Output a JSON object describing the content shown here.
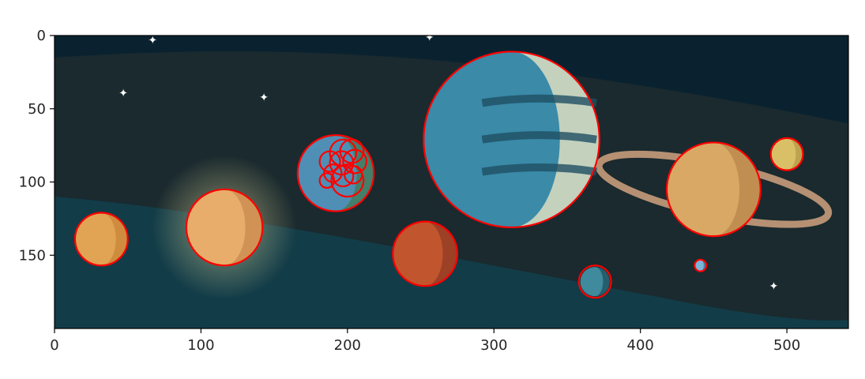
{
  "chart_data": {
    "type": "scatter",
    "title": "",
    "xlabel": "",
    "ylabel": "",
    "xlim": [
      0,
      542
    ],
    "ylim": [
      200,
      0
    ],
    "y_inverted": true,
    "grid": false,
    "x_ticks": [
      0,
      100,
      200,
      300,
      400,
      500
    ],
    "y_ticks": [
      0,
      50,
      100,
      150
    ],
    "x_tick_labels": [
      "0",
      "100",
      "200",
      "300",
      "400",
      "500"
    ],
    "y_tick_labels": [
      "0",
      "50",
      "100",
      "150"
    ],
    "background_image": {
      "description": "cartoon space scene with planets",
      "colors": {
        "space_dark": "#0a2230",
        "band_teal": "#123c48",
        "band_dark": "#1a2a2e",
        "star": "#ffffff"
      },
      "planets": [
        {
          "name": "orange-moon",
          "cx": 32,
          "cy": 139,
          "r": 18,
          "color": "#e0a454",
          "shade": "#c98437"
        },
        {
          "name": "venus",
          "cx": 116,
          "cy": 131,
          "r": 26,
          "color": "#e8ad6a",
          "shade": "#c88a4f"
        },
        {
          "name": "earth",
          "cx": 192,
          "cy": 94,
          "r": 26,
          "color": "#4f8fb5",
          "shade": "#3f7a52"
        },
        {
          "name": "mars",
          "cx": 253,
          "cy": 149,
          "r": 22,
          "color": "#c1552e",
          "shade": "#8f3a24"
        },
        {
          "name": "neptune",
          "cx": 312,
          "cy": 71,
          "r": 60,
          "color": "#3a8aa8",
          "shade": "#f2e8c4"
        },
        {
          "name": "small-planet",
          "cx": 369,
          "cy": 168,
          "r": 10,
          "color": "#3f8a9c",
          "shade": "#1e4f5c"
        },
        {
          "name": "saturn",
          "cx": 450,
          "cy": 105,
          "r": 32,
          "color": "#d9a864",
          "shade": "#b8864b"
        },
        {
          "name": "tiny-blue",
          "cx": 441,
          "cy": 157,
          "r": 4,
          "color": "#79b5d9",
          "shade": "#3f6f8c"
        },
        {
          "name": "yellow-moon",
          "cx": 500,
          "cy": 81,
          "r": 11,
          "color": "#d9c067",
          "shade": "#b39a48"
        }
      ],
      "stars": [
        {
          "x": 67,
          "y": 3
        },
        {
          "x": 47,
          "y": 39
        },
        {
          "x": 143,
          "y": 42
        },
        {
          "x": 491,
          "y": 171
        },
        {
          "x": 256,
          "y": 1
        }
      ]
    },
    "circles": [
      {
        "x": 32,
        "y": 139,
        "r": 18
      },
      {
        "x": 116,
        "y": 131,
        "r": 26
      },
      {
        "x": 192,
        "y": 94,
        "r": 26
      },
      {
        "x": 197,
        "y": 80,
        "r": 9
      },
      {
        "x": 203,
        "y": 79,
        "r": 8
      },
      {
        "x": 188,
        "y": 86,
        "r": 7
      },
      {
        "x": 196,
        "y": 87,
        "r": 8
      },
      {
        "x": 205,
        "y": 86,
        "r": 8
      },
      {
        "x": 190,
        "y": 94,
        "r": 6
      },
      {
        "x": 197,
        "y": 96,
        "r": 7
      },
      {
        "x": 204,
        "y": 95,
        "r": 6
      },
      {
        "x": 186,
        "y": 99,
        "r": 5
      },
      {
        "x": 200,
        "y": 99,
        "r": 11
      },
      {
        "x": 253,
        "y": 149,
        "r": 22
      },
      {
        "x": 312,
        "y": 71,
        "r": 60
      },
      {
        "x": 369,
        "y": 168,
        "r": 11
      },
      {
        "x": 450,
        "y": 105,
        "r": 32
      },
      {
        "x": 441,
        "y": 157,
        "r": 4
      },
      {
        "x": 500,
        "y": 81,
        "r": 11
      }
    ],
    "circle_color": "#ff0000"
  }
}
